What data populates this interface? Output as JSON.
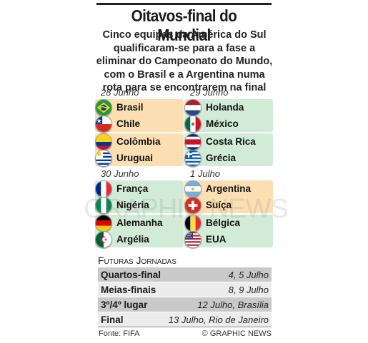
{
  "title": "Oitavos-final do Mundial",
  "subtitle_lines": [
    "Cinco equipas da América do Sul",
    "qualificaram-se para a fase a",
    "eliminar do Campeonato do Mundo,",
    "com o Brasil e a Argentina numa",
    "rota para se encontrarem na final"
  ],
  "dates": {
    "d1": "28 Junho",
    "d2": "29 Junho",
    "d3": "30 Junho",
    "d4": "1 Julho"
  },
  "teams": {
    "brasil": "Brasil",
    "chile": "Chile",
    "colombia": "Colômbia",
    "uruguai": "Uruguai",
    "holanda": "Holanda",
    "mexico": "México",
    "costa_rica": "Costa Rica",
    "grecia": "Grécia",
    "franca": "França",
    "nigeria": "Nigéria",
    "alemanha": "Alemanha",
    "argelia": "Argélia",
    "argentina": "Argentina",
    "suica": "Suíça",
    "belgica": "Bélgica",
    "eua": "EUA"
  },
  "flag_icons": {
    "brasil": "brazil-flag-icon",
    "chile": "chile-flag-icon",
    "colombia": "colombia-flag-icon",
    "uruguai": "uruguay-flag-icon",
    "holanda": "netherlands-flag-icon",
    "mexico": "mexico-flag-icon",
    "costa_rica": "costa-rica-flag-icon",
    "grecia": "greece-flag-icon",
    "franca": "france-flag-icon",
    "nigeria": "nigeria-flag-icon",
    "alemanha": "germany-flag-icon",
    "argelia": "algeria-flag-icon",
    "argentina": "argentina-flag-icon",
    "suica": "switzerland-flag-icon",
    "belgica": "belgium-flag-icon",
    "eua": "usa-flag-icon"
  },
  "colors": {
    "south_america_highlight": "#fbdfb3",
    "other_highlight": "#d2ebd6"
  },
  "schedule": {
    "heading": "Futuras Jornadas",
    "rows": [
      {
        "label": "Quartos-final",
        "date": "4, 5 Julho"
      },
      {
        "label": "Meias-finais",
        "date": "8, 9 Julho"
      },
      {
        "label": "3º/4º lugar",
        "date": "12 Julho, Brasília"
      },
      {
        "label": "Final",
        "date": "13 Julho, Rio de Janeiro"
      }
    ]
  },
  "watermark": "GRAPHIC NEWS",
  "footer": {
    "source": "Fonte: FIFA",
    "credit": "© GRAPHIC NEWS"
  }
}
